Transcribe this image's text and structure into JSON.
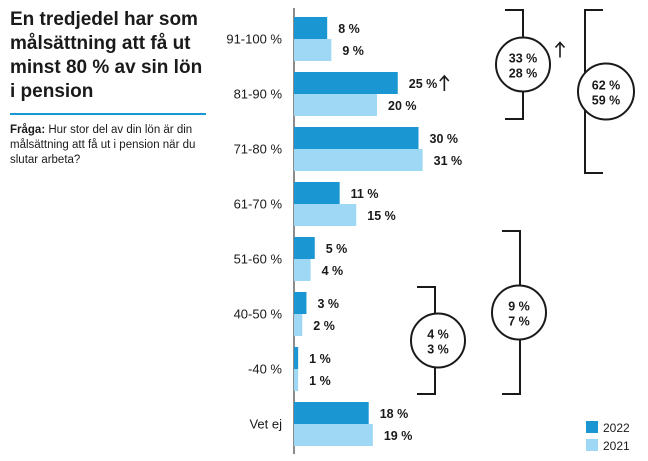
{
  "title": "En tredjedel har som målsättning att få ut minst 80 % av sin lön i pension",
  "question": {
    "label": "Fråga:",
    "text": "Hur stor del av din lön är din målsättning att få ut i pension när du slutar arbeta?"
  },
  "chart_data": {
    "type": "bar",
    "orientation": "horizontal",
    "categories": [
      "91-100 %",
      "81-90 %",
      "71-80 %",
      "61-70 %",
      "51-60 %",
      "40-50 %",
      "-40 %",
      "Vet ej"
    ],
    "series": [
      {
        "name": "2022",
        "values": [
          8,
          25,
          30,
          11,
          5,
          3,
          1,
          18
        ],
        "labels": [
          "8 %",
          "25 %",
          "30 %",
          "11 %",
          "5 %",
          "3 %",
          "1 %",
          "18 %"
        ],
        "color": "#1a96d2"
      },
      {
        "name": "2021",
        "values": [
          9,
          20,
          31,
          15,
          4,
          2,
          1,
          19
        ],
        "labels": [
          "9 %",
          "20 %",
          "31 %",
          "15 %",
          "4 %",
          "2 %",
          "1 %",
          "19 %"
        ],
        "color": "#9fd8f5"
      }
    ],
    "increase_marker_categories": [
      "81-90 %"
    ],
    "groups": [
      {
        "categories": [
          "91-100 %",
          "81-90 %"
        ],
        "label_2022": "33 %",
        "label_2021": "28 %",
        "increase": true
      },
      {
        "categories": [
          "91-100 %",
          "81-90 %",
          "71-80 %"
        ],
        "label_2022": "62 %",
        "label_2021": "59 %",
        "increase": false
      },
      {
        "categories": [
          "40-50 %",
          "-40 %"
        ],
        "label_2022": "4 %",
        "label_2021": "3 %",
        "increase": false
      },
      {
        "categories": [
          "51-60 %",
          "40-50 %",
          "-40 %"
        ],
        "label_2022": "9 %",
        "label_2021": "7 %",
        "increase": false
      }
    ],
    "legend": {
      "position": "bottom-right",
      "entries": [
        "2022",
        "2021"
      ]
    },
    "grid": false
  }
}
